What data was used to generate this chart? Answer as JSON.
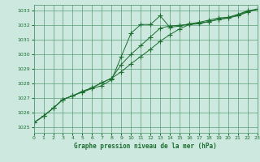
{
  "title": "Graphe pression niveau de la mer (hPa)",
  "bg_color": "#cde8df",
  "grid_color": "#5a9e7a",
  "line_color": "#1a6e2e",
  "xlim": [
    0,
    23
  ],
  "ylim": [
    1024.6,
    1033.4
  ],
  "yticks": [
    1025,
    1026,
    1027,
    1028,
    1029,
    1030,
    1031,
    1032,
    1033
  ],
  "xticks": [
    0,
    1,
    2,
    3,
    4,
    5,
    6,
    7,
    8,
    9,
    10,
    11,
    12,
    13,
    14,
    15,
    16,
    17,
    18,
    19,
    20,
    21,
    22,
    23
  ],
  "series1": [
    1025.3,
    1025.75,
    1026.3,
    1026.9,
    1027.15,
    1027.4,
    1027.65,
    1027.85,
    1028.25,
    1029.85,
    1031.45,
    1032.05,
    1032.05,
    1032.65,
    1031.85,
    1031.95,
    1032.1,
    1032.2,
    1032.35,
    1032.5,
    1032.55,
    1032.75,
    1033.0,
    1033.1
  ],
  "series2": [
    1025.3,
    1025.75,
    1026.3,
    1026.9,
    1027.15,
    1027.45,
    1027.7,
    1028.05,
    1028.35,
    1029.3,
    1030.0,
    1030.6,
    1031.2,
    1031.8,
    1031.95,
    1032.0,
    1032.05,
    1032.1,
    1032.25,
    1032.4,
    1032.5,
    1032.7,
    1032.95,
    1033.1
  ],
  "series3": [
    1025.3,
    1025.75,
    1026.3,
    1026.9,
    1027.15,
    1027.45,
    1027.7,
    1028.05,
    1028.35,
    1028.8,
    1029.35,
    1029.85,
    1030.35,
    1030.9,
    1031.35,
    1031.75,
    1032.05,
    1032.15,
    1032.25,
    1032.4,
    1032.5,
    1032.65,
    1032.9,
    1033.1
  ]
}
